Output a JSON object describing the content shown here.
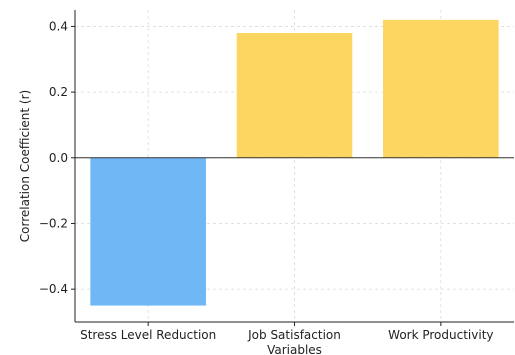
{
  "chart_data": {
    "type": "bar",
    "title": "",
    "xlabel": "Variables",
    "ylabel": "Correlation Coefficient (r)",
    "categories": [
      "Stress Level Reduction",
      "Job Satisfaction",
      "Work Productivity"
    ],
    "values": [
      -0.45,
      0.38,
      0.42
    ],
    "bar_colors": [
      "#6fb8f5",
      "#fdd661",
      "#fdd661"
    ],
    "ylim": [
      -0.5,
      0.45
    ],
    "yticks": [
      -0.4,
      -0.2,
      0.0,
      0.2,
      0.4
    ],
    "ytick_labels": [
      "−0.4",
      "−0.2",
      "0.0",
      "0.2",
      "0.4"
    ],
    "grid": true,
    "legend": "none"
  }
}
